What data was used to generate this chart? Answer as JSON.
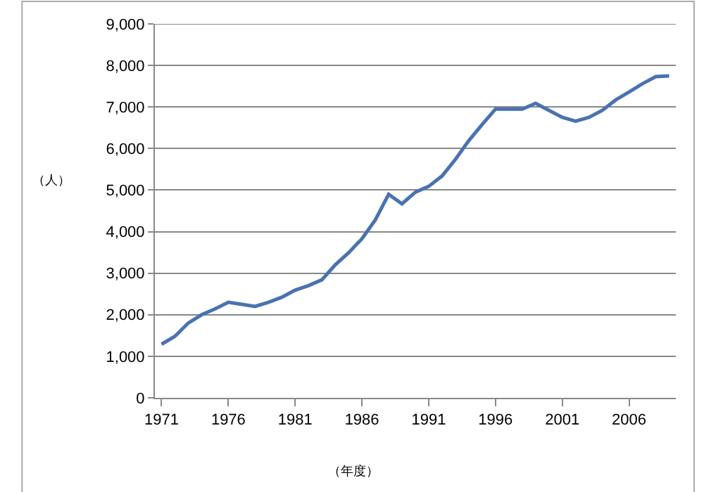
{
  "chart_data": {
    "type": "line",
    "xlabel": "（年度）",
    "ylabel": "（人）",
    "x": [
      1971,
      1972,
      1973,
      1974,
      1975,
      1976,
      1977,
      1978,
      1979,
      1980,
      1981,
      1982,
      1983,
      1984,
      1985,
      1986,
      1987,
      1988,
      1989,
      1990,
      1991,
      1992,
      1993,
      1994,
      1995,
      1996,
      1997,
      1998,
      1999,
      2000,
      2001,
      2002,
      2003,
      2004,
      2005,
      2006,
      2007,
      2008,
      2009
    ],
    "series": [
      {
        "color": "#4a72b0",
        "values": [
          1290,
          1480,
          1800,
          2000,
          2140,
          2300,
          2250,
          2200,
          2300,
          2420,
          2590,
          2700,
          2840,
          3200,
          3490,
          3830,
          4280,
          4900,
          4670,
          4950,
          5090,
          5340,
          5740,
          6190,
          6580,
          6950,
          6950,
          6950,
          7090,
          6920,
          6750,
          6660,
          6750,
          6920,
          7170,
          7360,
          7560,
          7730,
          7750
        ]
      }
    ],
    "xlim": [
      1970.5,
      2009.5
    ],
    "xticks": [
      1971,
      1976,
      1981,
      1986,
      1991,
      1996,
      2001,
      2006
    ],
    "ylim": [
      0,
      9000
    ],
    "yticks": [
      {
        "value": 0,
        "label": "0"
      },
      {
        "value": 1000,
        "label": "1,000"
      },
      {
        "value": 2000,
        "label": "2,000"
      },
      {
        "value": 3000,
        "label": "3,000"
      },
      {
        "value": 4000,
        "label": "4,000"
      },
      {
        "value": 5000,
        "label": "5,000"
      },
      {
        "value": 6000,
        "label": "6,000"
      },
      {
        "value": 7000,
        "label": "7,000"
      },
      {
        "value": 8000,
        "label": "8,000"
      },
      {
        "value": 9000,
        "label": "9,000"
      }
    ],
    "grid": "y",
    "marker": "none",
    "line_style": "solid"
  }
}
